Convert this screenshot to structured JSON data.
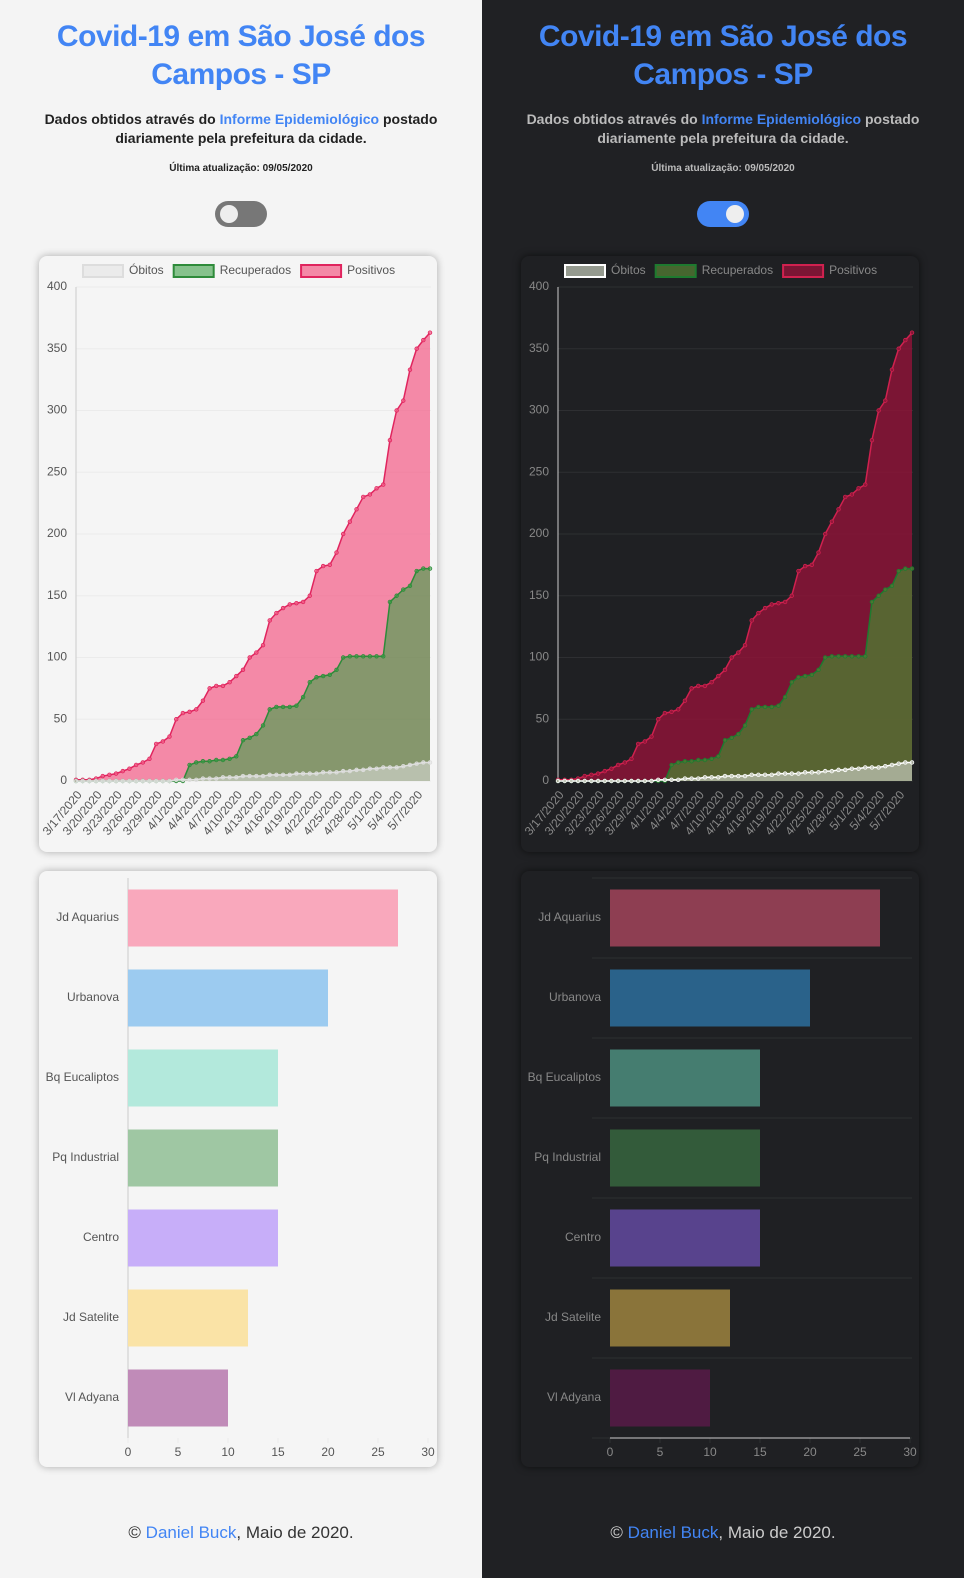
{
  "header": {
    "title": "Covid-19 em São José dos Campos - SP",
    "subtitle_before": "Dados obtidos através do",
    "link": "Informe Epidemiológico",
    "subtitle_after": "postado diariamente pela prefeitura da cidade.",
    "updated": "Última atualização: 09/05/2020"
  },
  "chart_data": [
    {
      "type": "line",
      "legend": "top",
      "grid": true,
      "categories": [
        "3/17/2020",
        null,
        null,
        "3/20/2020",
        null,
        null,
        "3/23/2020",
        null,
        null,
        "3/26/2020",
        null,
        null,
        "3/29/2020",
        null,
        null,
        "4/1/2020",
        null,
        null,
        "4/4/2020",
        null,
        null,
        "4/7/2020",
        null,
        null,
        "4/10/2020",
        null,
        null,
        "4/13/2020",
        null,
        null,
        "4/16/2020",
        null,
        null,
        "4/19/2020",
        null,
        null,
        "4/22/2020",
        null,
        null,
        "4/25/2020",
        null,
        null,
        "4/28/2020",
        null,
        null,
        "5/1/2020",
        null,
        null,
        "5/4/2020",
        null,
        null,
        "5/7/2020",
        null,
        null
      ],
      "ylim": [
        0,
        400
      ],
      "yticks": [
        0,
        50,
        100,
        150,
        200,
        250,
        300,
        350,
        400
      ],
      "series": [
        {
          "name": "Óbitos",
          "color": "#dddddd",
          "fill": "rgba(225,225,225,0.55)",
          "dark_color": "#ffffff",
          "dark_fill": "rgba(190,195,180,0.75)",
          "values": [
            0,
            0,
            0,
            0,
            0,
            0,
            0,
            0,
            0,
            0,
            0,
            0,
            0,
            0,
            0,
            1,
            1,
            1,
            1,
            2,
            2,
            2,
            3,
            3,
            3,
            4,
            4,
            4,
            4,
            5,
            5,
            5,
            5,
            6,
            6,
            6,
            6,
            7,
            7,
            7,
            8,
            8,
            9,
            9,
            10,
            10,
            11,
            11,
            11,
            12,
            13,
            14,
            15,
            15
          ]
        },
        {
          "name": "Recuperados",
          "color": "#2e8b3a",
          "fill": "rgba(60,160,70,0.6)",
          "dark_color": "#1e7a2f",
          "dark_fill": "rgba(80,120,50,0.8)",
          "values": [
            0,
            0,
            0,
            0,
            0,
            0,
            0,
            0,
            0,
            0,
            0,
            0,
            0,
            0,
            0,
            0,
            0,
            13,
            15,
            16,
            16,
            17,
            17,
            18,
            20,
            33,
            35,
            38,
            45,
            58,
            60,
            60,
            60,
            61,
            68,
            80,
            84,
            85,
            86,
            90,
            100,
            101,
            101,
            101,
            101,
            101,
            101,
            145,
            150,
            155,
            158,
            170,
            172,
            172
          ]
        },
        {
          "name": "Positivos",
          "color": "#e0245e",
          "fill": "rgba(243,100,140,0.75)",
          "dark_color": "#d0214f",
          "dark_fill": "rgba(140,20,55,0.85)",
          "values": [
            1,
            1,
            1,
            2,
            4,
            5,
            6,
            8,
            10,
            13,
            15,
            18,
            30,
            32,
            36,
            50,
            55,
            56,
            58,
            65,
            75,
            77,
            77,
            80,
            85,
            90,
            100,
            104,
            110,
            130,
            136,
            140,
            143,
            144,
            145,
            150,
            170,
            174,
            175,
            185,
            200,
            210,
            220,
            230,
            232,
            237,
            240,
            276,
            300,
            308,
            333,
            350,
            357,
            363
          ]
        }
      ]
    },
    {
      "type": "bar",
      "orientation": "horizontal",
      "categories": [
        "Jd Aquarius",
        "Urbanova",
        "Bq Eucaliptos",
        "Pq Industrial",
        "Centro",
        "Jd Satelite",
        "Vl Adyana"
      ],
      "values": [
        27,
        20,
        15,
        15,
        15,
        12,
        10
      ],
      "colors": [
        "#f9a8bc",
        "#9ccbf0",
        "#b3e9dc",
        "#9fc7a3",
        "#c7aef9",
        "#fae3a6",
        "#c08bb8"
      ],
      "dark_colors": [
        "#8e3e52",
        "#2a628a",
        "#457d70",
        "#335b3a",
        "#58438d",
        "#8a743a",
        "#4f1b42"
      ],
      "xlim": [
        0,
        30
      ],
      "xticks": [
        0,
        5,
        10,
        15,
        20,
        25,
        30
      ]
    }
  ],
  "footer": {
    "symbol": "©",
    "author": "Daniel Buck",
    "rest": ", Maio de 2020."
  }
}
